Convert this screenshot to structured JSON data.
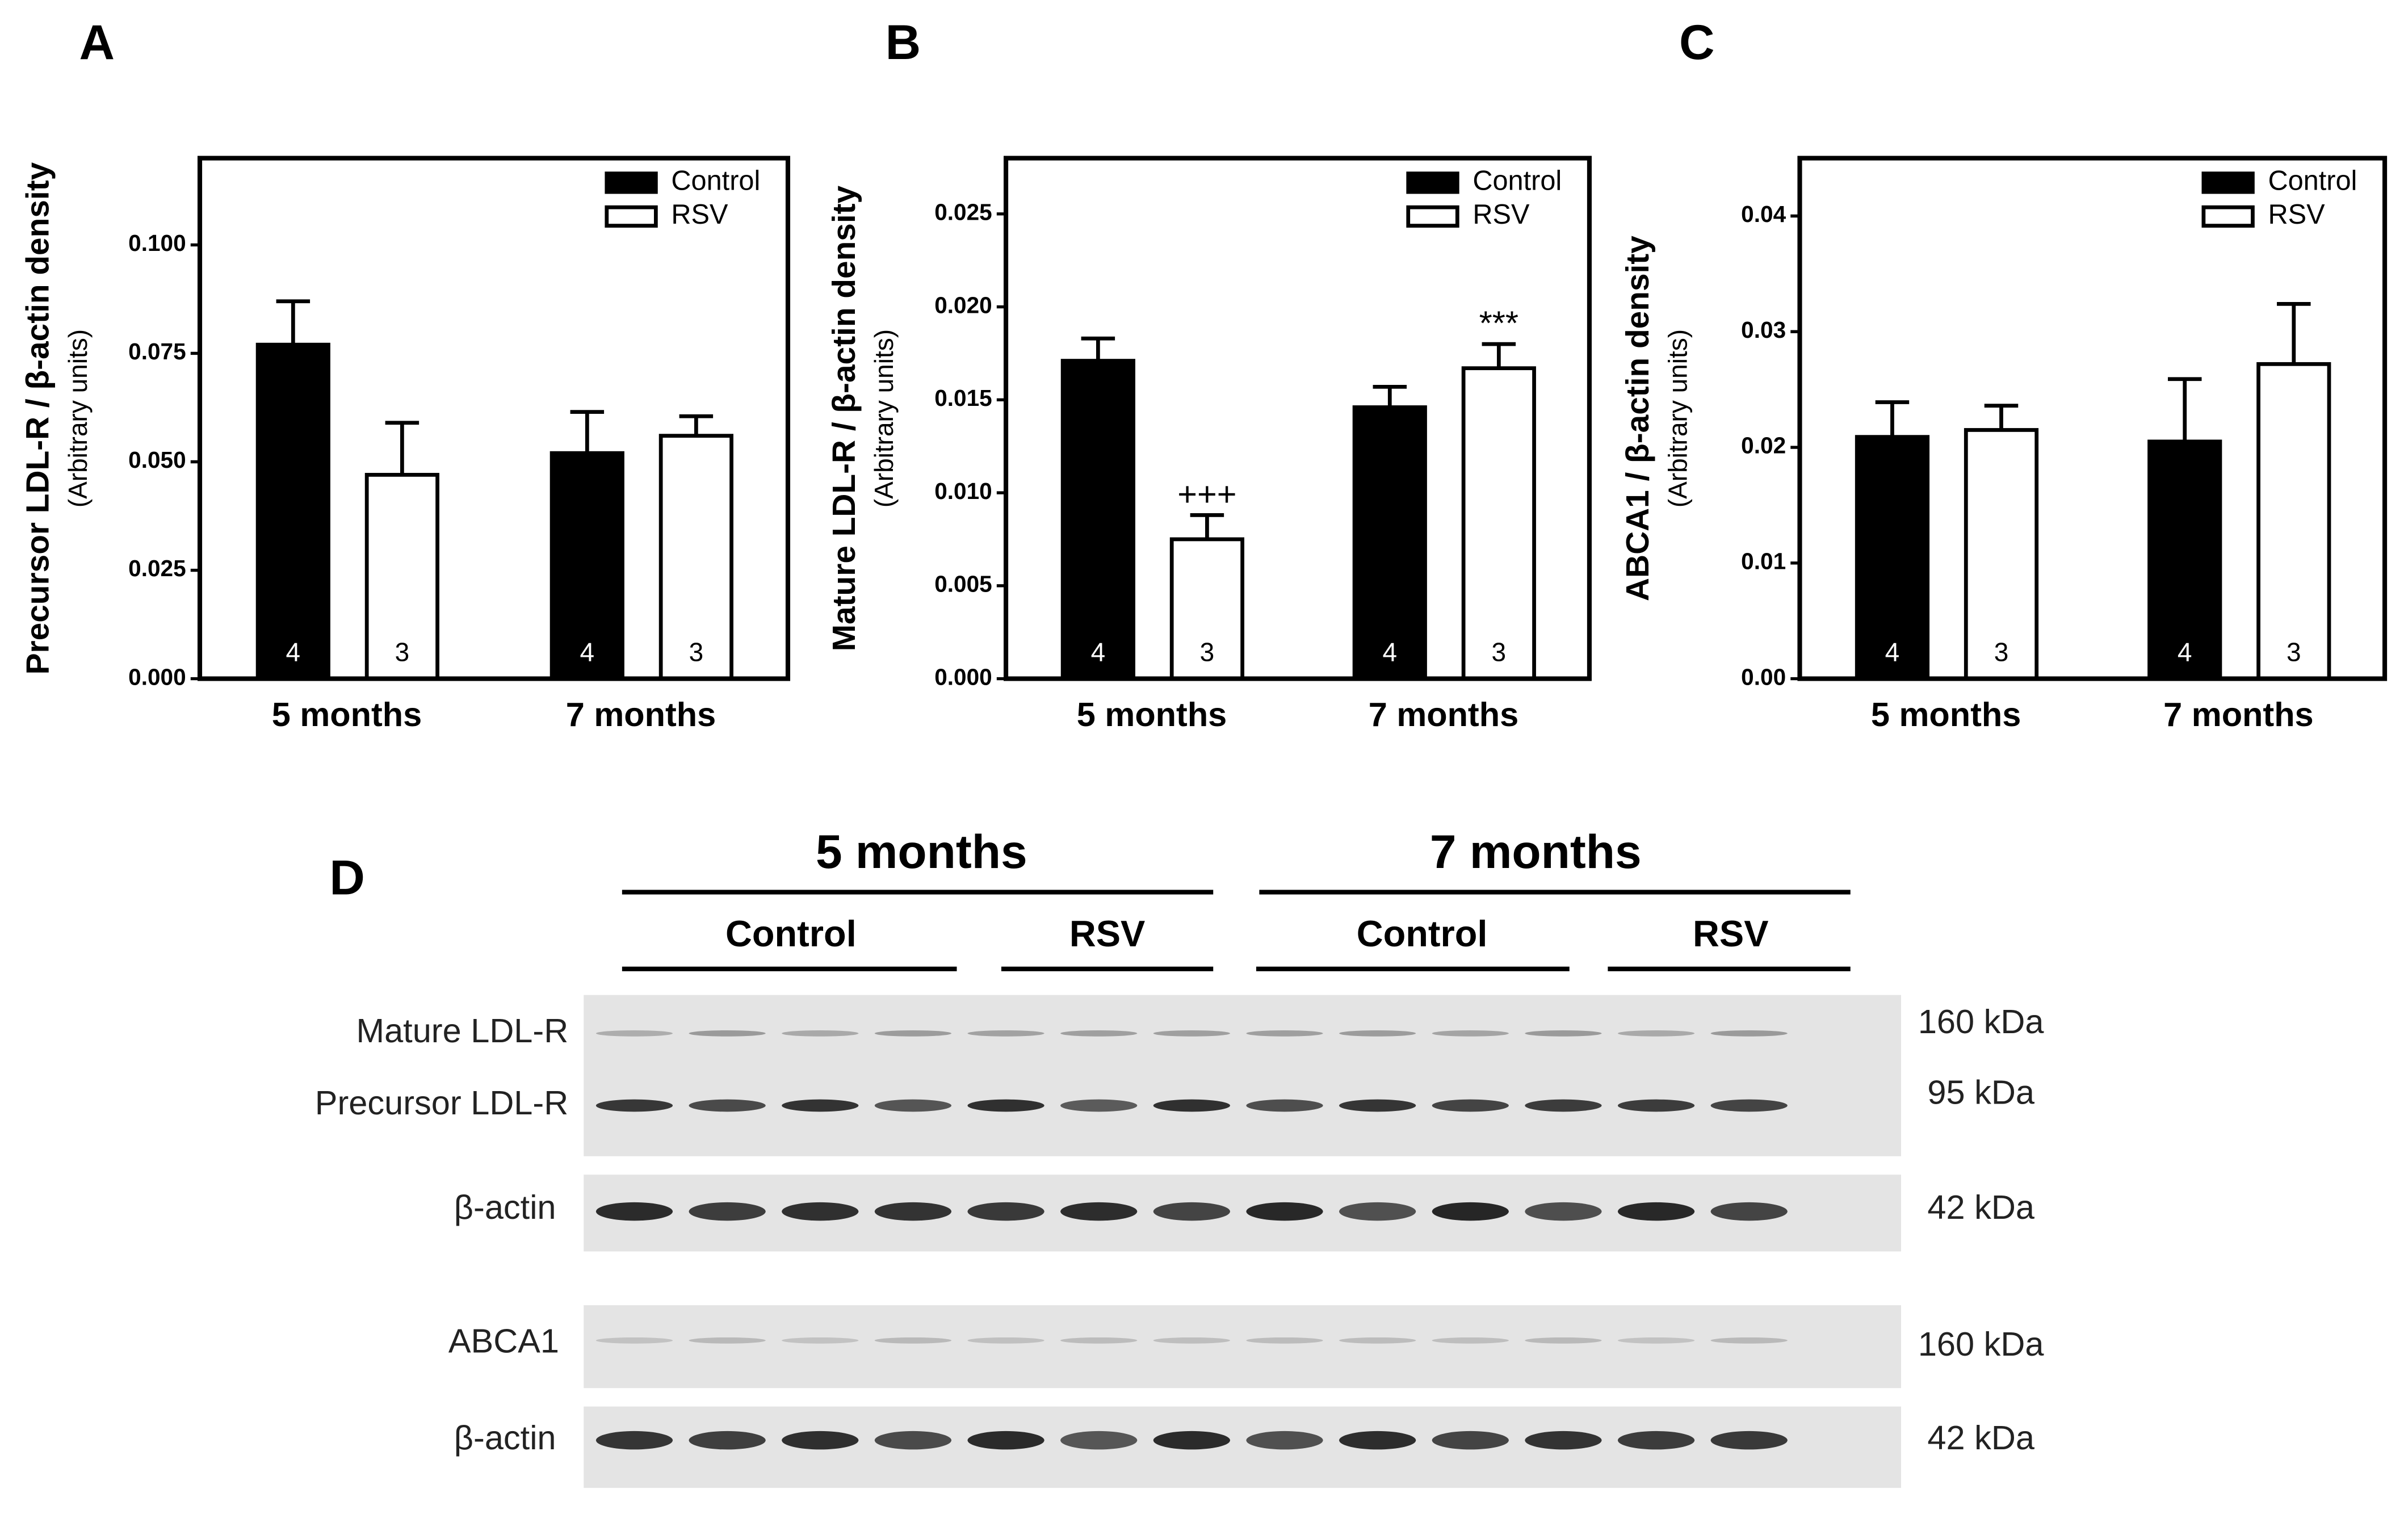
{
  "chart_data": [
    {
      "type": "bar",
      "panel": "A",
      "ylabel": "Precursor LDL-R / β-actin density",
      "ylabel_sub": "(Arbitrary units)",
      "categories": [
        "5 months",
        "7 months"
      ],
      "series": [
        {
          "name": "Control",
          "color": "#000000",
          "values": [
            0.077,
            0.052
          ],
          "errors": [
            0.01,
            0.0095
          ],
          "n": [
            4,
            4
          ]
        },
        {
          "name": "RSV",
          "color": "#ffffff",
          "values": [
            0.047,
            0.056
          ],
          "errors": [
            0.012,
            0.0045
          ],
          "n": [
            3,
            3
          ]
        }
      ],
      "ylim": [
        0,
        0.12
      ],
      "yticks": [
        {
          "value": 0,
          "label": "0.000"
        },
        {
          "value": 0.025,
          "label": "0.025"
        },
        {
          "value": 0.05,
          "label": "0.050"
        },
        {
          "value": 0.075,
          "label": "0.075"
        },
        {
          "value": 0.1,
          "label": "0.100"
        }
      ],
      "legend": "upper right"
    },
    {
      "type": "bar",
      "panel": "B",
      "ylabel": "Mature LDL-R / β-actin density",
      "ylabel_sub": "(Arbitrary units)",
      "categories": [
        "5 months",
        "7 months"
      ],
      "series": [
        {
          "name": "Control",
          "color": "#000000",
          "values": [
            0.0171,
            0.0146
          ],
          "errors": [
            0.0012,
            0.0011
          ],
          "n": [
            4,
            4
          ]
        },
        {
          "name": "RSV",
          "color": "#ffffff",
          "values": [
            0.0075,
            0.0167
          ],
          "errors": [
            0.0013,
            0.0013
          ],
          "n": [
            3,
            3
          ],
          "annotations": [
            "+++",
            "***"
          ]
        }
      ],
      "ylim": [
        0,
        0.028
      ],
      "yticks": [
        {
          "value": 0,
          "label": "0.000"
        },
        {
          "value": 0.005,
          "label": "0.005"
        },
        {
          "value": 0.01,
          "label": "0.010"
        },
        {
          "value": 0.015,
          "label": "0.015"
        },
        {
          "value": 0.02,
          "label": "0.020"
        },
        {
          "value": 0.025,
          "label": "0.025"
        }
      ],
      "legend": "upper right"
    },
    {
      "type": "bar",
      "panel": "C",
      "ylabel": "ABCA1 / β-actin density",
      "ylabel_sub": "(Arbitrary units)",
      "categories": [
        "5 months",
        "7 months"
      ],
      "series": [
        {
          "name": "Control",
          "color": "#000000",
          "values": [
            0.0209,
            0.0205
          ],
          "errors": [
            0.003,
            0.0054
          ],
          "n": [
            4,
            4
          ]
        },
        {
          "name": "RSV",
          "color": "#ffffff",
          "values": [
            0.0215,
            0.0272
          ],
          "errors": [
            0.0021,
            0.0052
          ],
          "n": [
            3,
            3
          ]
        }
      ],
      "ylim": [
        0,
        0.045
      ],
      "yticks": [
        {
          "value": 0,
          "label": "0.00"
        },
        {
          "value": 0.01,
          "label": "0.01"
        },
        {
          "value": 0.02,
          "label": "0.02"
        },
        {
          "value": 0.03,
          "label": "0.03"
        },
        {
          "value": 0.04,
          "label": "0.04"
        }
      ],
      "legend": "upper right"
    }
  ],
  "blot": {
    "panel": "D",
    "groups": [
      "5 months",
      "7 months"
    ],
    "subgroups": [
      "Control",
      "RSV",
      "Control",
      "RSV"
    ],
    "rows": [
      "Mature LDL-R",
      "Precursor LDL-R",
      "β-actin",
      "ABCA1",
      "β-actin"
    ],
    "sizes": [
      "160 kDa",
      "95 kDa",
      "42 kDa",
      "160 kDa",
      "42 kDa"
    ]
  }
}
